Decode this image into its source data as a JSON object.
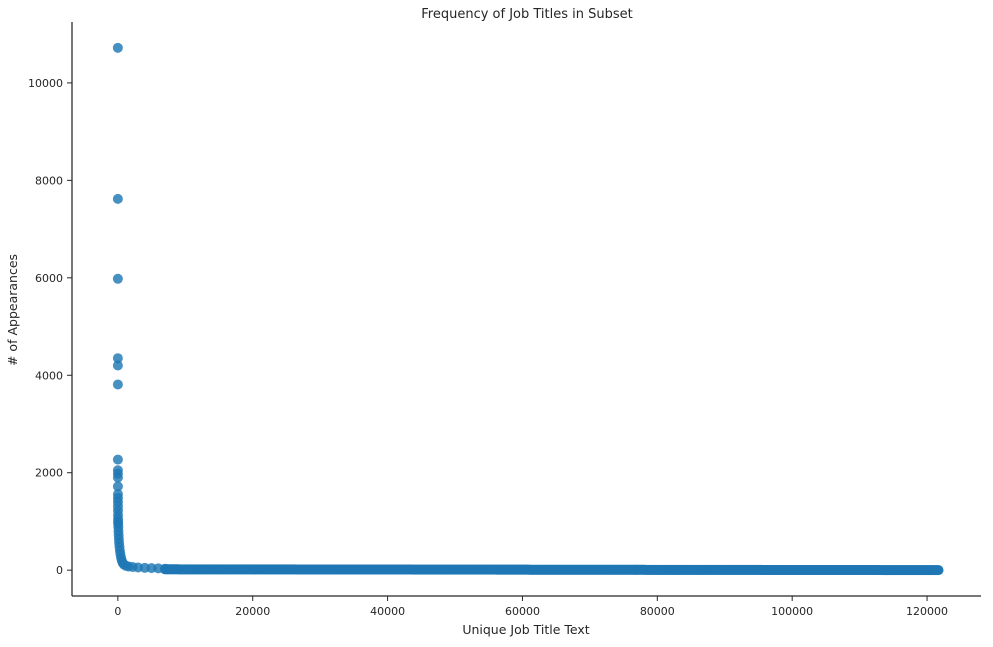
{
  "chart_data": {
    "type": "scatter",
    "title": "Frequency of Job Titles in Subset",
    "xlabel": "Unique Job Title Text",
    "ylabel": "# of Appearances",
    "xlim": [
      -6800,
      128000
    ],
    "ylim": [
      -530,
      11250
    ],
    "xticks": [
      0,
      20000,
      40000,
      60000,
      80000,
      100000,
      120000
    ],
    "yticks": [
      0,
      2000,
      4000,
      6000,
      8000,
      10000
    ],
    "grid": false,
    "legend": "none",
    "marker_color": "#1f77b4",
    "points": [
      {
        "x": 0,
        "y": 10720
      },
      {
        "x": 1,
        "y": 7620
      },
      {
        "x": 2,
        "y": 5980
      },
      {
        "x": 3,
        "y": 4350
      },
      {
        "x": 4,
        "y": 4200
      },
      {
        "x": 5,
        "y": 3810
      },
      {
        "x": 6,
        "y": 2270
      },
      {
        "x": 7,
        "y": 2050
      },
      {
        "x": 8,
        "y": 1980
      },
      {
        "x": 9,
        "y": 1900
      },
      {
        "x": 10,
        "y": 1720
      },
      {
        "x": 12,
        "y": 1560
      },
      {
        "x": 14,
        "y": 1480
      },
      {
        "x": 16,
        "y": 1400
      },
      {
        "x": 18,
        "y": 1310
      },
      {
        "x": 22,
        "y": 1220
      },
      {
        "x": 26,
        "y": 1130
      },
      {
        "x": 32,
        "y": 1050
      },
      {
        "x": 40,
        "y": 990
      },
      {
        "x": 50,
        "y": 950
      },
      {
        "x": 70,
        "y": 880
      },
      {
        "x": 90,
        "y": 800
      },
      {
        "x": 120,
        "y": 720
      },
      {
        "x": 150,
        "y": 640
      },
      {
        "x": 190,
        "y": 560
      },
      {
        "x": 240,
        "y": 480
      },
      {
        "x": 300,
        "y": 400
      },
      {
        "x": 380,
        "y": 330
      },
      {
        "x": 470,
        "y": 260
      },
      {
        "x": 580,
        "y": 200
      },
      {
        "x": 720,
        "y": 150
      },
      {
        "x": 900,
        "y": 115
      },
      {
        "x": 1200,
        "y": 90
      },
      {
        "x": 1600,
        "y": 75
      },
      {
        "x": 2200,
        "y": 65
      },
      {
        "x": 3000,
        "y": 55
      },
      {
        "x": 4000,
        "y": 48
      },
      {
        "x": 5000,
        "y": 42
      },
      {
        "x": 6000,
        "y": 38
      },
      {
        "x": 7000,
        "y": 30
      }
    ],
    "tail": {
      "x_start": 7000,
      "x_end": 121700,
      "y_start": 18,
      "y_end": 1
    }
  }
}
